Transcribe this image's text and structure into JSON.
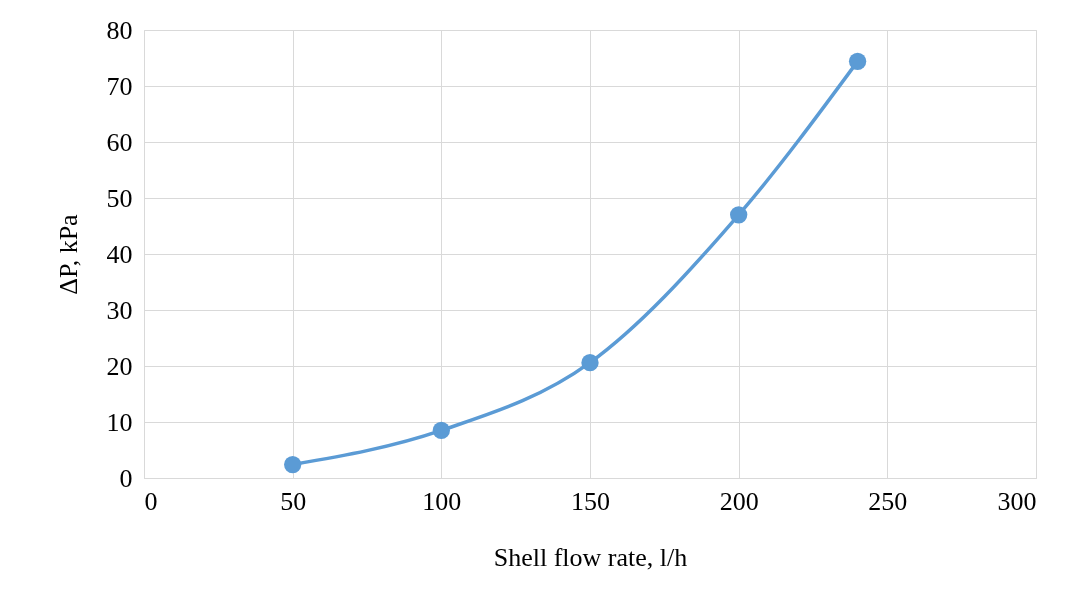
{
  "chart_data": {
    "type": "line",
    "xlabel": "Shell flow rate, l/h",
    "ylabel": "ΔP,  kPa",
    "x": [
      50,
      100,
      150,
      200,
      240
    ],
    "series": [
      {
        "color": "#5b9bd5",
        "values": [
          2.4,
          8.5,
          20.6,
          47.0,
          74.4
        ]
      }
    ],
    "xlim": [
      0,
      300
    ],
    "xticks": [
      0,
      50,
      100,
      150,
      200,
      250,
      300
    ],
    "ylim": [
      0,
      80
    ],
    "yticks": [
      0,
      10,
      20,
      30,
      40,
      50,
      60,
      70,
      80
    ],
    "grid": true,
    "marker": "circle",
    "line_style": "solid"
  }
}
